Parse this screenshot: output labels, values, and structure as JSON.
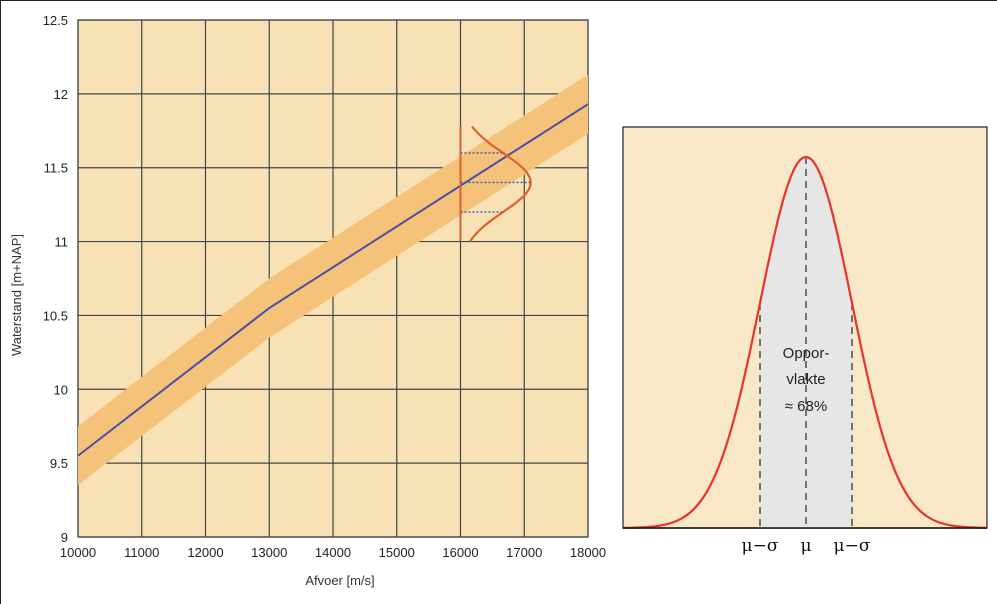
{
  "chart_data": [
    {
      "type": "line",
      "xlabel": "Afvoer [m/s]",
      "ylabel": "Waterstand [m+NAP]",
      "xlim": [
        10000,
        18000
      ],
      "ylim": [
        9,
        12.5
      ],
      "x_ticks": [
        "10000",
        "11000",
        "12000",
        "13000",
        "14000",
        "15000",
        "16000",
        "17000",
        "18000"
      ],
      "y_ticks": [
        "9",
        "9.5",
        "10",
        "10.5",
        "11",
        "11.5",
        "12",
        "12.5"
      ],
      "grid": true,
      "colors": {
        "background": "#f8e1b4",
        "band": "#f5c27a",
        "line": "#4a4fa3",
        "density": "#e0602a",
        "grid": "#444444"
      },
      "series": [
        {
          "x": [
            10000,
            13000,
            18000
          ],
          "y": [
            9.55,
            10.55,
            11.93
          ]
        }
      ],
      "band_halfwidth": 0.2,
      "distribution": {
        "x_base": 16000,
        "y_mean": 11.4,
        "sigma": 0.2,
        "peak_x": 17100,
        "ticks_y": [
          11.2,
          11.4,
          11.6
        ],
        "y_range": [
          11.0,
          11.78
        ]
      }
    },
    {
      "type": "area",
      "distribution": "normal",
      "x_labels": [
        "μ−σ",
        "μ",
        "μ−σ"
      ],
      "annotation": [
        "Oppor-",
        "vlakte",
        "≈ 68%"
      ],
      "colors": {
        "background": "#f8e8c8",
        "curve": "#e8342a",
        "shaded": "#e6e6e6"
      }
    }
  ]
}
